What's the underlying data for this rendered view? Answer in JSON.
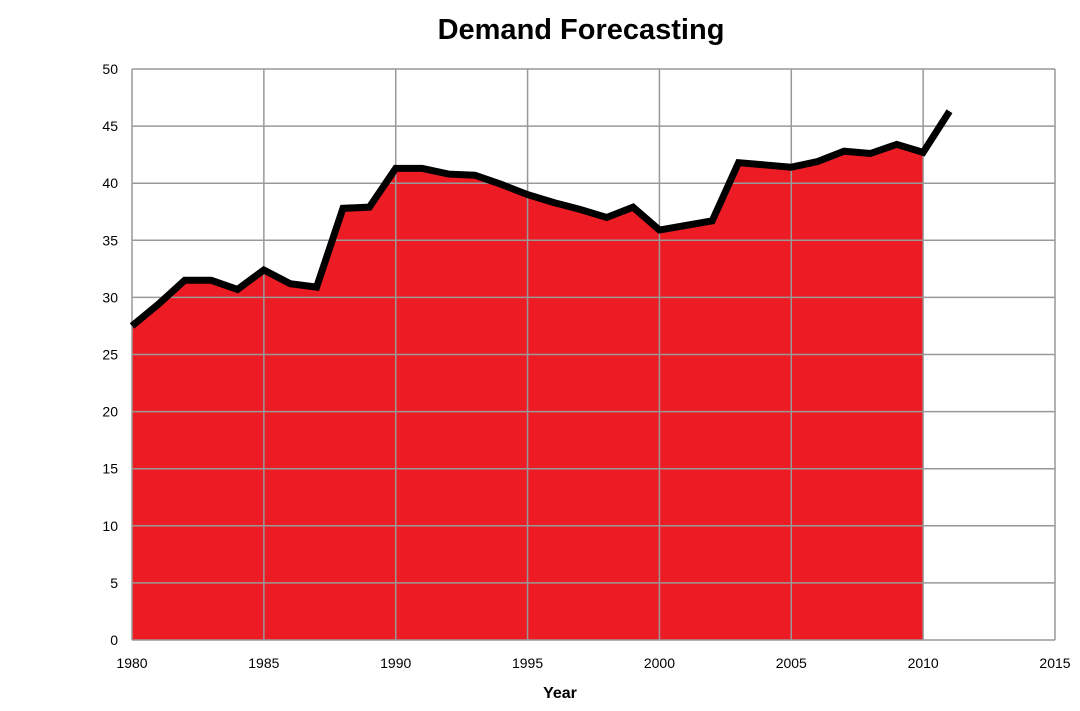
{
  "chart_data": {
    "type": "area",
    "title": "Demand Forecasting",
    "xlabel": "Year",
    "ylabel": "",
    "xlim": [
      1980,
      2015
    ],
    "ylim": [
      0,
      50
    ],
    "xticks": [
      1980,
      1985,
      1990,
      1995,
      2000,
      2005,
      2010,
      2015
    ],
    "yticks": [
      0,
      5,
      10,
      15,
      20,
      25,
      30,
      35,
      40,
      45,
      50
    ],
    "grid": true,
    "legend": "none",
    "colors": {
      "fill": "#ed1c24",
      "line": "#000000",
      "grid": "#999999"
    },
    "x": [
      1980,
      1981,
      1982,
      1983,
      1984,
      1985,
      1986,
      1987,
      1988,
      1989,
      1990,
      1991,
      1992,
      1993,
      1994,
      1995,
      1996,
      1997,
      1998,
      1999,
      2000,
      2001,
      2002,
      2003,
      2004,
      2005,
      2006,
      2007,
      2008,
      2009,
      2010,
      2011
    ],
    "series": [
      {
        "kind": "area",
        "values": [
          27.5,
          29.4,
          31.5,
          31.5,
          30.7,
          32.4,
          31.2,
          30.9,
          37.8,
          37.9,
          41.3,
          41.3,
          40.8,
          40.7,
          39.9,
          39.0,
          38.3,
          37.7,
          37.0,
          37.9,
          35.9,
          36.3,
          36.7,
          41.8,
          41.6,
          41.4,
          41.9,
          42.8,
          42.6,
          43.4,
          42.7,
          null
        ]
      },
      {
        "kind": "line",
        "values": [
          27.5,
          29.4,
          31.5,
          31.5,
          30.7,
          32.4,
          31.2,
          30.9,
          37.8,
          37.9,
          41.3,
          41.3,
          40.8,
          40.7,
          39.9,
          39.0,
          38.3,
          37.7,
          37.0,
          37.9,
          35.9,
          36.3,
          36.7,
          41.8,
          41.6,
          41.4,
          41.9,
          42.8,
          42.6,
          43.4,
          42.7,
          46.3
        ]
      }
    ]
  }
}
